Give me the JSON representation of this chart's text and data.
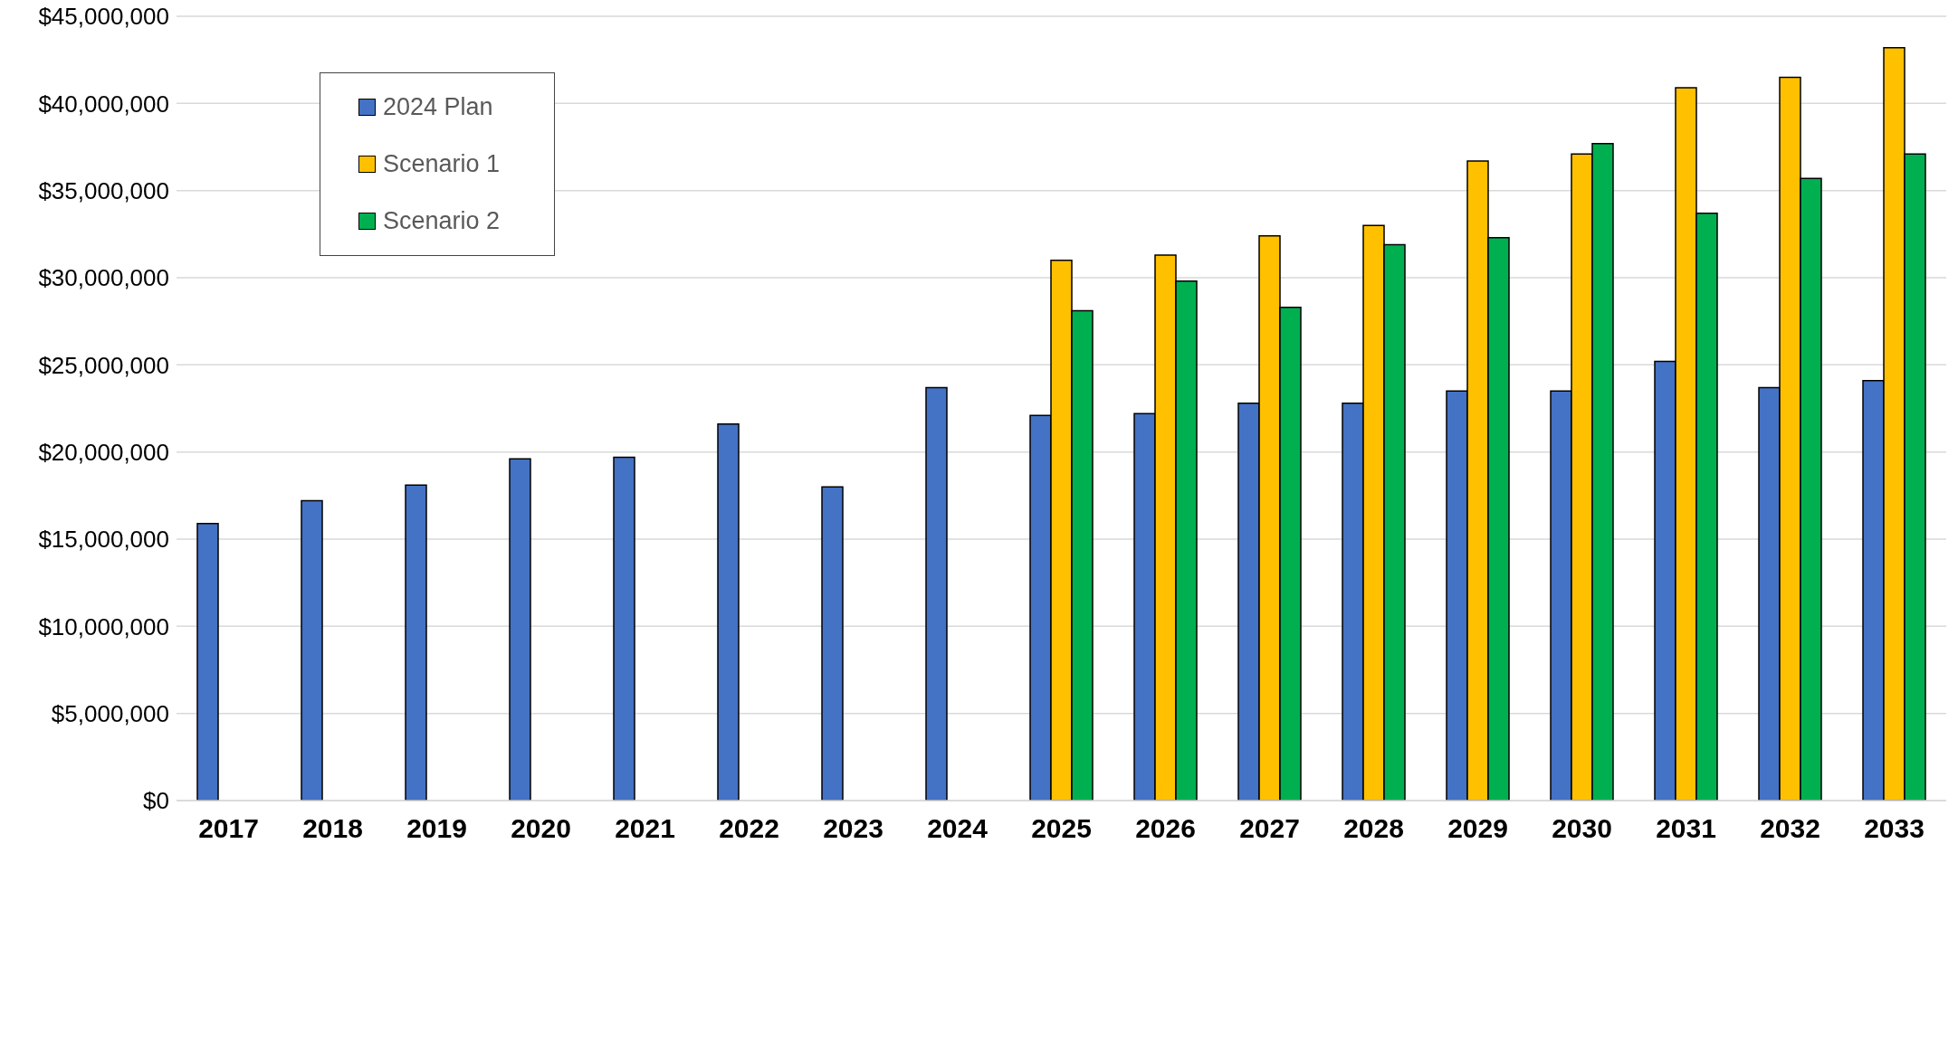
{
  "chart_data": {
    "type": "bar",
    "categories": [
      "2017",
      "2018",
      "2019",
      "2020",
      "2021",
      "2022",
      "2023",
      "2024",
      "2025",
      "2026",
      "2027",
      "2028",
      "2029",
      "2030",
      "2031",
      "2032",
      "2033"
    ],
    "series": [
      {
        "name": "2024 Plan",
        "color": "#4472c4",
        "values": [
          15900000,
          17200000,
          18100000,
          19600000,
          19700000,
          21600000,
          18000000,
          23700000,
          22100000,
          22200000,
          22800000,
          22800000,
          23500000,
          23500000,
          25200000,
          23700000,
          24100000
        ]
      },
      {
        "name": "Scenario 1",
        "color": "#ffc000",
        "values": [
          null,
          null,
          null,
          null,
          null,
          null,
          null,
          null,
          31000000,
          31300000,
          32400000,
          33000000,
          36700000,
          37100000,
          40900000,
          41500000,
          43200000
        ]
      },
      {
        "name": "Scenario 2",
        "color": "#00b050",
        "values": [
          null,
          null,
          null,
          null,
          null,
          null,
          null,
          null,
          28100000,
          29800000,
          28300000,
          31900000,
          32300000,
          37700000,
          33700000,
          35700000,
          37100000
        ]
      }
    ],
    "ylim": [
      0,
      45000000
    ],
    "yticks": [
      {
        "value": 0,
        "label": "$0"
      },
      {
        "value": 5000000,
        "label": "$5,000,000"
      },
      {
        "value": 10000000,
        "label": "$10,000,000"
      },
      {
        "value": 15000000,
        "label": "$15,000,000"
      },
      {
        "value": 20000000,
        "label": "$20,000,000"
      },
      {
        "value": 25000000,
        "label": "$25,000,000"
      },
      {
        "value": 30000000,
        "label": "$30,000,000"
      },
      {
        "value": 35000000,
        "label": "$35,000,000"
      },
      {
        "value": 40000000,
        "label": "$40,000,000"
      },
      {
        "value": 45000000,
        "label": "$45,000,000"
      }
    ],
    "grid": "y",
    "legend": "top left"
  }
}
